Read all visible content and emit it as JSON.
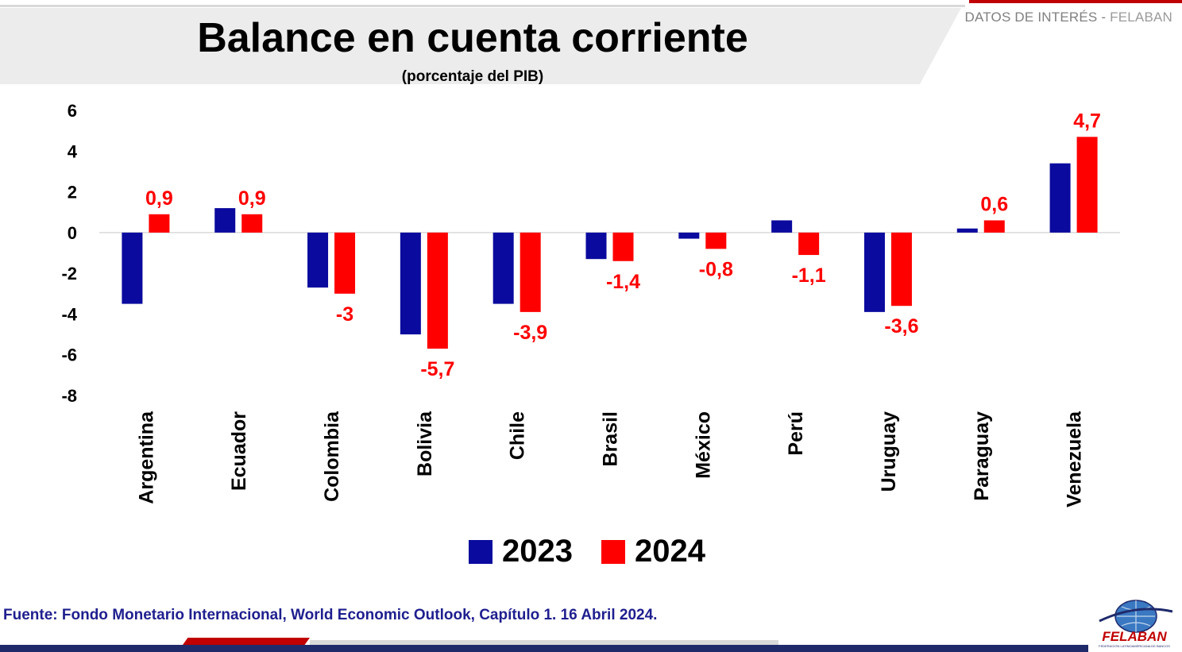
{
  "header": {
    "tag_prefix": "DATOS DE INTERÉS - ",
    "tag_brand": "FELABAN"
  },
  "chart_data": {
    "type": "bar",
    "title": "Balance en cuenta corriente",
    "subtitle": "(porcentaje del PIB)",
    "categories": [
      "Argentina",
      "Ecuador",
      "Colombia",
      "Bolivia",
      "Chile",
      "Brasil",
      "México",
      "Perú",
      "Uruguay",
      "Paraguay",
      "Venezuela"
    ],
    "series": [
      {
        "name": "2023",
        "color": "#0a0a9e",
        "values": [
          -3.5,
          1.2,
          -2.7,
          -5.0,
          -3.5,
          -1.3,
          -0.3,
          0.6,
          -3.9,
          0.2,
          3.4
        ]
      },
      {
        "name": "2024",
        "color": "#ff0000",
        "values": [
          0.9,
          0.9,
          -3.0,
          -5.7,
          -3.9,
          -1.4,
          -0.8,
          -1.1,
          -3.6,
          0.6,
          4.7
        ],
        "data_labels": [
          "0,9",
          "0,9",
          "-3",
          "-5,7",
          "-3,9",
          "-1,4",
          "-0,8",
          "-1,1",
          "-3,6",
          "0,6",
          "4,7"
        ]
      }
    ],
    "ylim": [
      -8,
      6
    ],
    "yticks": [
      6,
      4,
      2,
      0,
      -2,
      -4,
      -6,
      -8
    ],
    "grid": false,
    "legend_position": "bottom"
  },
  "footer": {
    "source": "Fuente: Fondo Monetario Internacional, World Economic Outlook, Capítulo 1. 16 Abril 2024.",
    "logo_text": "FELABAN",
    "logo_subtext": "FEDERACIÓN LATINOAMERICANA DE BANCOS"
  }
}
